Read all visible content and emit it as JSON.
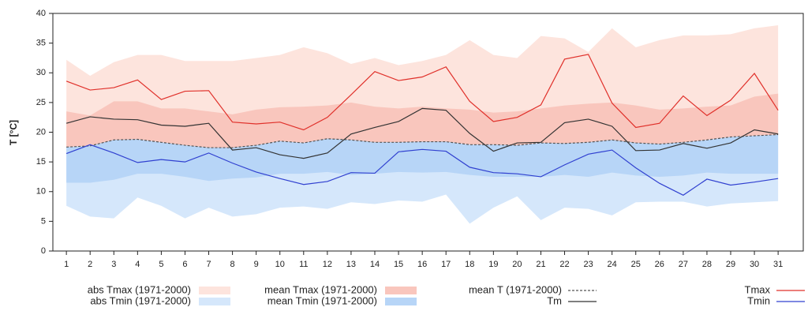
{
  "chart_data": {
    "type": "line",
    "y_label": "T [°C]",
    "x": [
      1,
      2,
      3,
      4,
      5,
      6,
      7,
      8,
      9,
      10,
      11,
      12,
      13,
      14,
      15,
      16,
      17,
      18,
      19,
      20,
      21,
      22,
      23,
      24,
      25,
      26,
      27,
      28,
      29,
      30,
      31
    ],
    "xlim": [
      0.43,
      32.06
    ],
    "xticks": [
      1,
      2,
      3,
      4,
      5,
      6,
      7,
      8,
      9,
      10,
      11,
      12,
      13,
      14,
      15,
      16,
      17,
      18,
      19,
      20,
      21,
      22,
      23,
      24,
      25,
      26,
      27,
      28,
      29,
      30,
      31
    ],
    "ylim": [
      0,
      40
    ],
    "yticks": [
      0,
      5,
      10,
      15,
      20,
      25,
      30,
      35,
      40
    ],
    "series": [
      {
        "name": "abs Tmax (1971-2000)",
        "style": "area",
        "color": "#fde4dd",
        "values": [
          32.2,
          29.5,
          31.8,
          33,
          33,
          32,
          32,
          32,
          32.5,
          33,
          34.3,
          33.3,
          31.5,
          32.5,
          31.3,
          32,
          33,
          35.5,
          33,
          32.5,
          36.2,
          35.8,
          33.5,
          37.5,
          34.3,
          35.5,
          36.3,
          36.3,
          36.5,
          37.5,
          38
        ]
      },
      {
        "name": "abs Tmin (1971-2000)",
        "style": "area",
        "color": "#d5e7fb",
        "values": [
          7.6,
          5.8,
          5.5,
          9,
          7.6,
          5.5,
          7.3,
          5.8,
          6.2,
          7.3,
          7.5,
          7.1,
          8.2,
          7.9,
          8.5,
          8.3,
          9.5,
          4.6,
          7.3,
          9.2,
          5.2,
          7.3,
          7.1,
          6,
          8.2,
          8.3,
          8.3,
          7.5,
          8,
          8.2,
          8.4
        ]
      },
      {
        "name": "mean Tmax (1971-2000)",
        "style": "area",
        "color": "#f9c6bd",
        "values": [
          23.5,
          22.8,
          25.2,
          25.2,
          24,
          24,
          23.5,
          23,
          23.8,
          24.2,
          24.3,
          24.5,
          25,
          24.3,
          24,
          24.3,
          24,
          23.8,
          23.3,
          23.5,
          24,
          24.5,
          24.8,
          25,
          24.5,
          23.8,
          24,
          24.3,
          24.5,
          26,
          26.5
        ]
      },
      {
        "name": "mean Tmin (1971-2000)",
        "style": "area",
        "color": "#b7d5f7",
        "values": [
          11.5,
          11.5,
          12,
          13,
          13,
          12.5,
          11.8,
          12.2,
          12.4,
          13,
          13,
          13.3,
          12.8,
          13,
          13.3,
          13.2,
          13.3,
          12.8,
          12.5,
          12.5,
          12.5,
          12.8,
          12.5,
          13.2,
          12.7,
          12.5,
          12.7,
          13.2,
          13,
          13,
          13
        ]
      },
      {
        "name": "mean T (1971-2000)",
        "style": "dashed",
        "color": "#555555",
        "values": [
          17.5,
          17.7,
          18.7,
          18.8,
          18.3,
          17.8,
          17.4,
          17.4,
          17.8,
          18.5,
          18.2,
          18.9,
          18.7,
          18.3,
          18.3,
          18.4,
          18.4,
          17.9,
          17.9,
          17.8,
          18.2,
          18.1,
          18.3,
          18.7,
          18.2,
          18,
          18.3,
          18.7,
          19.2,
          19.4,
          19.6
        ]
      },
      {
        "name": "Tm",
        "style": "line",
        "color": "#333333",
        "values": [
          21.5,
          22.6,
          22.2,
          22.1,
          21.2,
          21,
          21.5,
          17,
          17.4,
          16.2,
          15.6,
          16.5,
          19.7,
          20.8,
          21.8,
          24,
          23.7,
          19.8,
          16.8,
          18.2,
          18.3,
          21.6,
          22.2,
          21,
          16.9,
          17,
          18.1,
          17.3,
          18.2,
          20.4,
          19.7
        ]
      },
      {
        "name": "Tmax",
        "style": "line",
        "color": "#e0302a",
        "values": [
          28.6,
          27.1,
          27.5,
          28.8,
          25.5,
          26.9,
          27,
          21.7,
          21.4,
          21.7,
          20.4,
          22.5,
          26.3,
          30.2,
          28.7,
          29.3,
          31,
          25.2,
          21.8,
          22.5,
          24.6,
          32.3,
          33.1,
          24.9,
          20.8,
          21.5,
          26.1,
          22.8,
          25.4,
          29.9,
          23.7
        ]
      },
      {
        "name": "Tmin",
        "style": "line",
        "color": "#3040d0",
        "values": [
          16.4,
          17.9,
          16.5,
          14.9,
          15.4,
          15,
          16.5,
          14.8,
          13.3,
          12.2,
          11.2,
          11.7,
          13.2,
          13.1,
          16.7,
          17.1,
          16.8,
          14.1,
          13.2,
          13,
          12.5,
          14.5,
          16.3,
          17,
          14,
          11.4,
          9.4,
          12.1,
          11.1,
          11.6,
          12.2
        ]
      }
    ]
  }
}
